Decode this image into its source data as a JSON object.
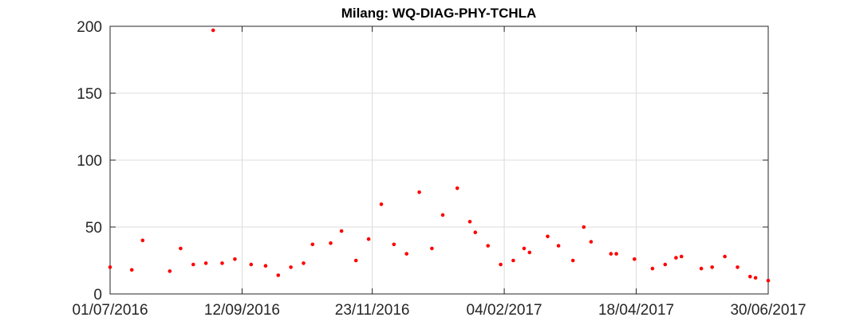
{
  "chart_data": {
    "type": "scatter",
    "title": "Milang: WQ-DIAG-PHY-TCHLA",
    "xlabel": "",
    "ylabel": "",
    "xlim": [
      "2016-07-01",
      "2017-06-30"
    ],
    "ylim": [
      0,
      200
    ],
    "grid": true,
    "marker_color": "#ff0000",
    "x_ticks": [
      "2016-07-01",
      "2016-09-12",
      "2016-11-23",
      "2017-02-04",
      "2017-04-18",
      "2017-06-30"
    ],
    "x_tick_labels": [
      "01/07/2016",
      "12/09/2016",
      "23/11/2016",
      "04/02/2017",
      "18/04/2017",
      "30/06/2017"
    ],
    "y_ticks": [
      0,
      50,
      100,
      150,
      200
    ],
    "y_tick_labels": [
      "0",
      "50",
      "100",
      "150",
      "200"
    ],
    "series": [
      {
        "points": [
          [
            "2016-07-01",
            20
          ],
          [
            "2016-07-13",
            18
          ],
          [
            "2016-07-19",
            40
          ],
          [
            "2016-08-03",
            17
          ],
          [
            "2016-08-09",
            34
          ],
          [
            "2016-08-16",
            22
          ],
          [
            "2016-08-23",
            23
          ],
          [
            "2016-08-27",
            197
          ],
          [
            "2016-09-01",
            23
          ],
          [
            "2016-09-08",
            26
          ],
          [
            "2016-09-17",
            22
          ],
          [
            "2016-09-25",
            21
          ],
          [
            "2016-10-02",
            14
          ],
          [
            "2016-10-09",
            20
          ],
          [
            "2016-10-16",
            23
          ],
          [
            "2016-10-21",
            37
          ],
          [
            "2016-10-31",
            38
          ],
          [
            "2016-11-06",
            47
          ],
          [
            "2016-11-14",
            25
          ],
          [
            "2016-11-21",
            41
          ],
          [
            "2016-11-28",
            67
          ],
          [
            "2016-12-05",
            37
          ],
          [
            "2016-12-12",
            30
          ],
          [
            "2016-12-19",
            76
          ],
          [
            "2016-12-26",
            34
          ],
          [
            "2017-01-01",
            59
          ],
          [
            "2017-01-09",
            79
          ],
          [
            "2017-01-16",
            54
          ],
          [
            "2017-01-19",
            46
          ],
          [
            "2017-01-26",
            36
          ],
          [
            "2017-02-02",
            22
          ],
          [
            "2017-02-09",
            25
          ],
          [
            "2017-02-15",
            34
          ],
          [
            "2017-02-18",
            31
          ],
          [
            "2017-02-28",
            43
          ],
          [
            "2017-03-06",
            36
          ],
          [
            "2017-03-14",
            25
          ],
          [
            "2017-03-20",
            50
          ],
          [
            "2017-03-24",
            39
          ],
          [
            "2017-04-04",
            30
          ],
          [
            "2017-04-07",
            30
          ],
          [
            "2017-04-17",
            26
          ],
          [
            "2017-04-27",
            19
          ],
          [
            "2017-05-04",
            22
          ],
          [
            "2017-05-10",
            27
          ],
          [
            "2017-05-13",
            28
          ],
          [
            "2017-05-24",
            19
          ],
          [
            "2017-05-30",
            20
          ],
          [
            "2017-06-06",
            28
          ],
          [
            "2017-06-13",
            20
          ],
          [
            "2017-06-20",
            13
          ],
          [
            "2017-06-23",
            12
          ],
          [
            "2017-06-30",
            10
          ]
        ]
      }
    ]
  }
}
